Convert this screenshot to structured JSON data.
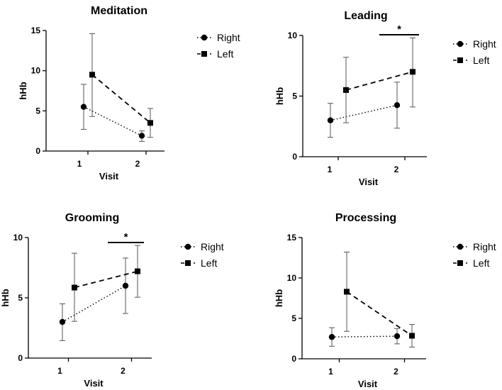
{
  "chart_data": [
    {
      "type": "line",
      "title": "Meditation",
      "xlabel": "Visit",
      "ylabel": "hHb",
      "categories": [
        "1",
        "2"
      ],
      "ylim": [
        0,
        15
      ],
      "yticks": [
        "0",
        "5",
        "10",
        "15"
      ],
      "series": [
        {
          "name": "Right",
          "marker": "circle",
          "linestyle": "dotted",
          "values": [
            5.5,
            1.9
          ],
          "err_low": [
            2.7,
            1.2
          ],
          "err_high": [
            8.3,
            2.5
          ]
        },
        {
          "name": "Left",
          "marker": "square",
          "linestyle": "dashed",
          "values": [
            9.5,
            3.5
          ],
          "err_low": [
            4.3,
            1.7
          ],
          "err_high": [
            14.6,
            5.3
          ]
        }
      ],
      "significance": null
    },
    {
      "type": "line",
      "title": "Leading",
      "xlabel": "Visit",
      "ylabel": "hHb",
      "categories": [
        "1",
        "2"
      ],
      "ylim": [
        0,
        10
      ],
      "yticks": [
        "0",
        "5",
        "10"
      ],
      "series": [
        {
          "name": "Right",
          "marker": "circle",
          "linestyle": "dotted",
          "values": [
            3.0,
            4.25
          ],
          "err_low": [
            1.6,
            2.35
          ],
          "err_high": [
            4.4,
            6.15
          ]
        },
        {
          "name": "Left",
          "marker": "square",
          "linestyle": "dashed",
          "values": [
            5.5,
            7.0
          ],
          "err_low": [
            2.8,
            4.1
          ],
          "err_high": [
            8.2,
            9.8
          ]
        }
      ],
      "significance": "*"
    },
    {
      "type": "line",
      "title": "Grooming",
      "xlabel": "Visit",
      "ylabel": "hHb",
      "categories": [
        "1",
        "2"
      ],
      "ylim": [
        0,
        10
      ],
      "yticks": [
        "0",
        "5",
        "10"
      ],
      "series": [
        {
          "name": "Right",
          "marker": "circle",
          "linestyle": "dotted",
          "values": [
            3.0,
            6.0
          ],
          "err_low": [
            1.45,
            3.7
          ],
          "err_high": [
            4.5,
            8.3
          ]
        },
        {
          "name": "Left",
          "marker": "square",
          "linestyle": "dashed",
          "values": [
            5.85,
            7.2
          ],
          "err_low": [
            3.05,
            5.05
          ],
          "err_high": [
            8.7,
            9.35
          ]
        }
      ],
      "significance": "*"
    },
    {
      "type": "line",
      "title": "Processing",
      "xlabel": "Visit",
      "ylabel": "hHb",
      "categories": [
        "1",
        "2"
      ],
      "ylim": [
        0,
        15
      ],
      "yticks": [
        "0",
        "5",
        "10",
        "15"
      ],
      "series": [
        {
          "name": "Right",
          "marker": "circle",
          "linestyle": "dotted",
          "values": [
            2.7,
            2.8
          ],
          "err_low": [
            1.55,
            1.85
          ],
          "err_high": [
            3.85,
            3.75
          ]
        },
        {
          "name": "Left",
          "marker": "square",
          "linestyle": "dashed",
          "values": [
            8.3,
            2.85
          ],
          "err_low": [
            3.4,
            1.45
          ],
          "err_high": [
            13.2,
            4.25
          ]
        }
      ],
      "significance": null
    }
  ]
}
